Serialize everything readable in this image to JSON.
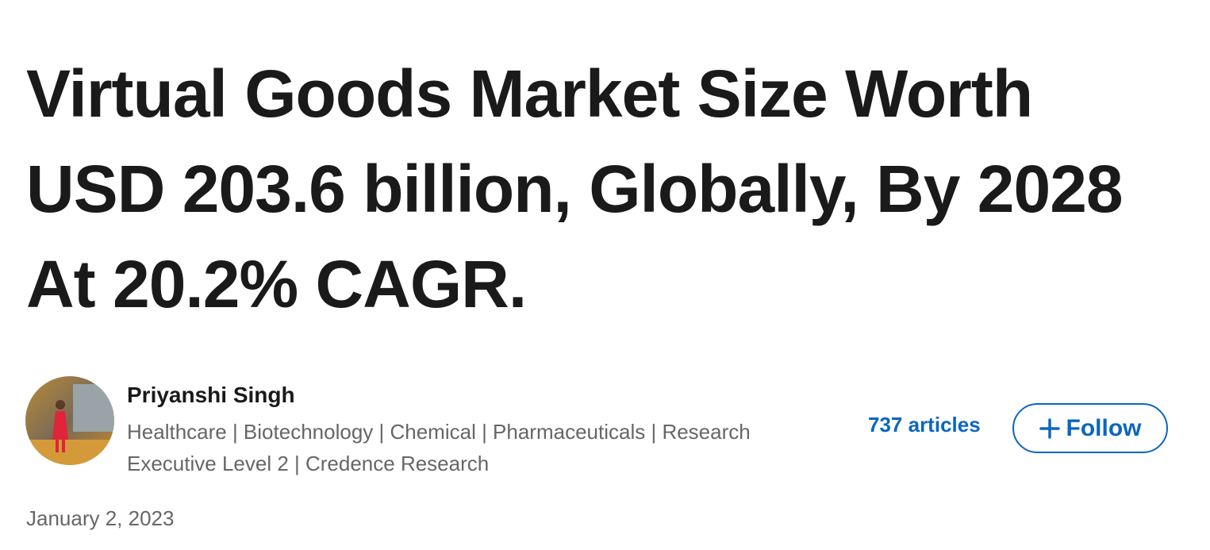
{
  "article": {
    "title": "Virtual Goods Market Size Worth USD 203.6 billion, Globally, By 2028 At 20.2% CAGR.",
    "author": {
      "name": "Priyanshi Singh",
      "headline": "Healthcare | Biotechnology | Chemical | Pharmaceuticals | Research Executive Level 2 | Credence Research",
      "articles": "737 articles",
      "follow": "Follow"
    },
    "date": "January 2, 2023"
  }
}
